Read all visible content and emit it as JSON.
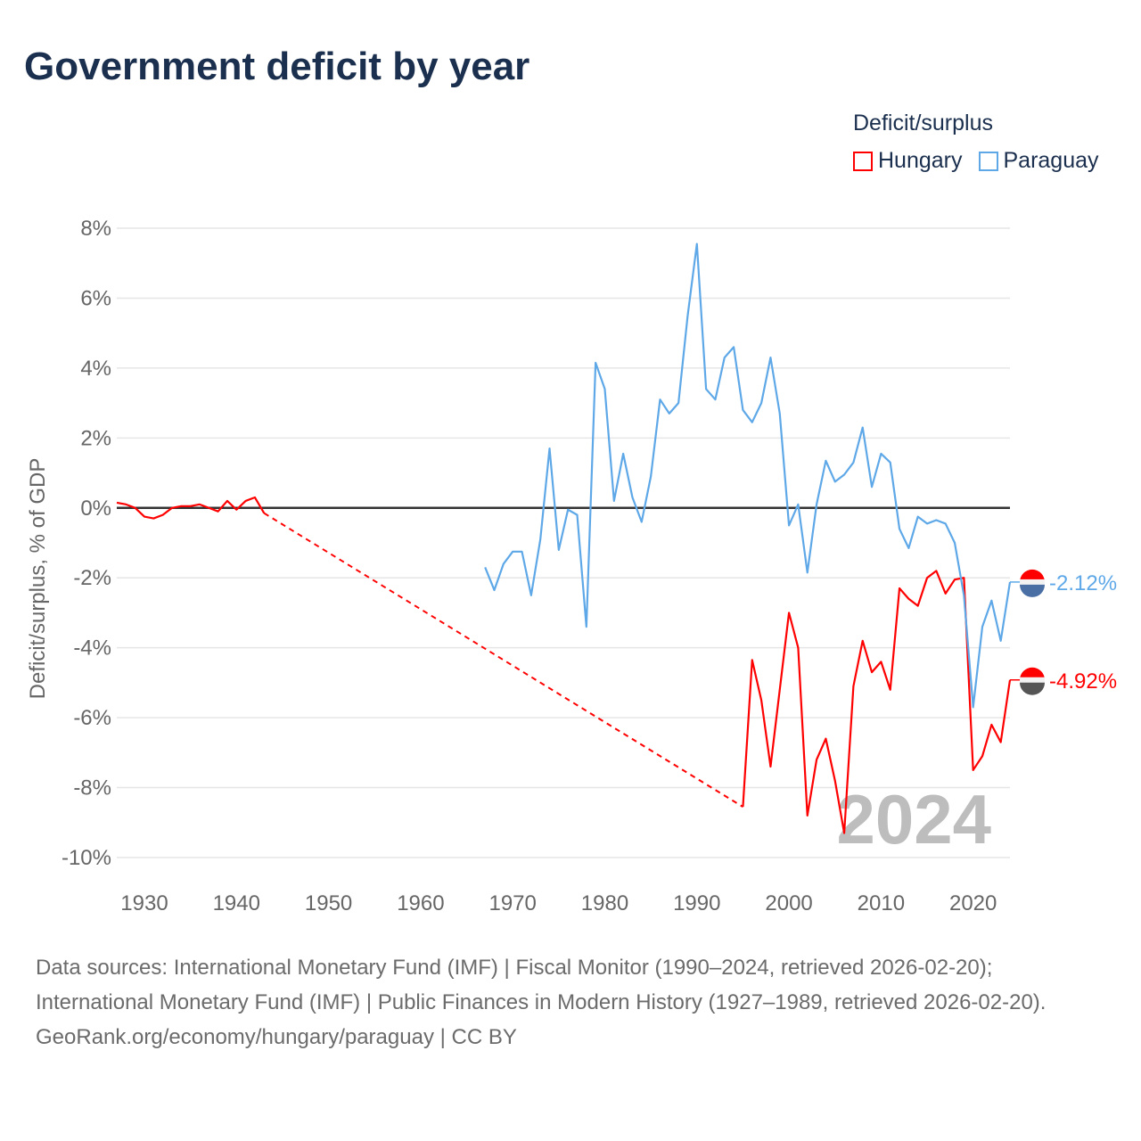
{
  "title": "Government deficit by year",
  "legend": {
    "title": "Deficit/surplus",
    "items": [
      {
        "name": "Hungary",
        "color": "#ff0000"
      },
      {
        "name": "Paraguay",
        "color": "#5ea8e8"
      }
    ]
  },
  "footer": {
    "sources": "Data sources: International Monetary Fund (IMF) | Fiscal Monitor (1990–2024, retrieved 2026-02-20); International Monetary Fund (IMF) | Public Finances in Modern History (1927–1989, retrieved 2026-02-20).",
    "credit": "GeoRank.org/economy/hungary/paraguay | CC BY"
  },
  "chart_data": {
    "type": "line",
    "title": "Government deficit by year",
    "xlabel": "",
    "ylabel": "Deficit/surplus, % of GDP",
    "xlim": [
      1927,
      2024
    ],
    "ylim": [
      -10,
      8
    ],
    "xticks": [
      "1930",
      "1940",
      "1950",
      "1960",
      "1970",
      "1980",
      "1990",
      "2000",
      "2010",
      "2020"
    ],
    "yticks": [
      "8%",
      "6%",
      "4%",
      "2%",
      "0%",
      "-2%",
      "-4%",
      "-6%",
      "-8%",
      "-10%"
    ],
    "year_annotation": "2024",
    "series": [
      {
        "name": "Hungary",
        "color": "#ff0000",
        "end_label": "-4.92%",
        "x": [
          1927,
          1928,
          1929,
          1930,
          1931,
          1932,
          1933,
          1934,
          1935,
          1936,
          1937,
          1938,
          1939,
          1940,
          1941,
          1942,
          1943,
          1995,
          1996,
          1997,
          1998,
          1999,
          2000,
          2001,
          2002,
          2003,
          2004,
          2005,
          2006,
          2007,
          2008,
          2009,
          2010,
          2011,
          2012,
          2013,
          2014,
          2015,
          2016,
          2017,
          2018,
          2019,
          2020,
          2021,
          2022,
          2023,
          2024
        ],
        "y": [
          0.15,
          0.1,
          0,
          -0.25,
          -0.3,
          -0.2,
          0,
          0.05,
          0.05,
          0.1,
          0,
          -0.1,
          0.2,
          -0.05,
          0.2,
          0.3,
          -0.15,
          -8.55,
          -4.35,
          -5.5,
          -7.4,
          -5.2,
          -3.0,
          -4.0,
          -8.8,
          -7.2,
          -6.6,
          -7.8,
          -9.3,
          -5.1,
          -3.8,
          -4.7,
          -4.4,
          -5.2,
          -2.3,
          -2.6,
          -2.8,
          -2.0,
          -1.8,
          -2.45,
          -2.05,
          -2.0,
          -7.5,
          -7.1,
          -6.2,
          -6.7,
          -4.92
        ],
        "gap_after": 1943
      },
      {
        "name": "Paraguay",
        "color": "#5ea8e8",
        "end_label": "-2.12%",
        "x": [
          1967,
          1968,
          1969,
          1970,
          1971,
          1972,
          1973,
          1974,
          1975,
          1976,
          1977,
          1978,
          1979,
          1980,
          1981,
          1982,
          1983,
          1984,
          1985,
          1986,
          1987,
          1988,
          1989,
          1990,
          1991,
          1992,
          1993,
          1994,
          1995,
          1996,
          1997,
          1998,
          1999,
          2000,
          2001,
          2002,
          2003,
          2004,
          2005,
          2006,
          2007,
          2008,
          2009,
          2010,
          2011,
          2012,
          2013,
          2014,
          2015,
          2016,
          2017,
          2018,
          2019,
          2020,
          2021,
          2022,
          2023,
          2024
        ],
        "y": [
          -1.7,
          -2.35,
          -1.6,
          -1.25,
          -1.25,
          -2.5,
          -0.9,
          1.7,
          -1.2,
          -0.05,
          -0.2,
          -3.4,
          4.15,
          3.4,
          0.2,
          1.55,
          0.3,
          -0.4,
          0.9,
          3.1,
          2.7,
          3.0,
          5.5,
          7.55,
          3.4,
          3.1,
          4.3,
          4.6,
          2.8,
          2.45,
          3.0,
          4.3,
          2.7,
          -0.5,
          0.1,
          -1.85,
          0.1,
          1.35,
          0.75,
          0.95,
          1.3,
          2.3,
          0.6,
          1.55,
          1.3,
          -0.6,
          -1.15,
          -0.25,
          -0.45,
          -0.35,
          -0.45,
          -1.0,
          -2.5,
          -5.7,
          -3.4,
          -2.65,
          -3.8,
          -2.12
        ]
      }
    ]
  }
}
